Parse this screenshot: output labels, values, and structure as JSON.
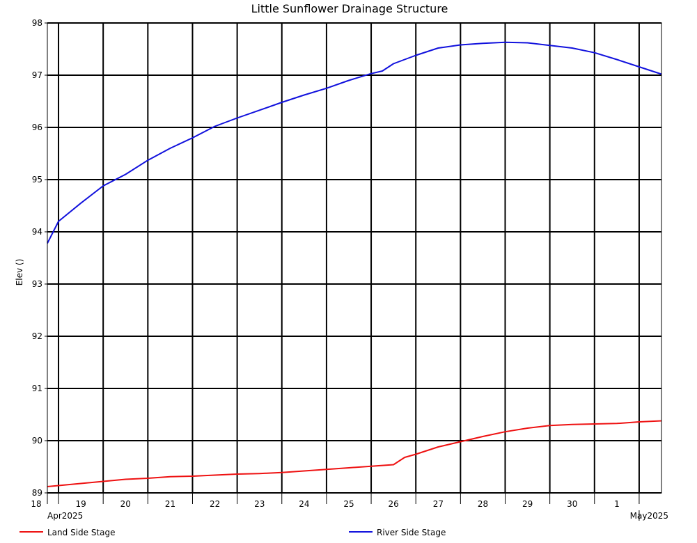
{
  "chart_data": {
    "type": "line",
    "title": "Little Sunflower Drainage Structure",
    "ylabel": "Elev ()",
    "ylim": [
      89,
      98
    ],
    "yticks": [
      89,
      90,
      91,
      92,
      93,
      94,
      95,
      96,
      97,
      98
    ],
    "grid": true,
    "x_domain": [
      "2025-04-17T18:00",
      "2025-05-01T12:00"
    ],
    "x_ticks": [
      {
        "label": "18",
        "date": "2025-04-18"
      },
      {
        "label": "19",
        "date": "2025-04-19"
      },
      {
        "label": "20",
        "date": "2025-04-20"
      },
      {
        "label": "21",
        "date": "2025-04-21"
      },
      {
        "label": "22",
        "date": "2025-04-22"
      },
      {
        "label": "23",
        "date": "2025-04-23"
      },
      {
        "label": "24",
        "date": "2025-04-24"
      },
      {
        "label": "25",
        "date": "2025-04-25"
      },
      {
        "label": "26",
        "date": "2025-04-26"
      },
      {
        "label": "27",
        "date": "2025-04-27"
      },
      {
        "label": "28",
        "date": "2025-04-28"
      },
      {
        "label": "29",
        "date": "2025-04-29"
      },
      {
        "label": "30",
        "date": "2025-04-30"
      },
      {
        "label": "1",
        "date": "2025-05-01"
      }
    ],
    "month_labels": [
      "Apr2025",
      "May2025"
    ],
    "legend_position": "bottom",
    "series": [
      {
        "name": "Land Side Stage",
        "color": "#ee1111",
        "x": [
          "2025-04-17T18:00",
          "2025-04-18T00:00",
          "2025-04-18T12:00",
          "2025-04-19T00:00",
          "2025-04-19T12:00",
          "2025-04-20T00:00",
          "2025-04-20T12:00",
          "2025-04-21T00:00",
          "2025-04-21T12:00",
          "2025-04-22T00:00",
          "2025-04-22T12:00",
          "2025-04-23T00:00",
          "2025-04-23T12:00",
          "2025-04-24T00:00",
          "2025-04-24T12:00",
          "2025-04-25T00:00",
          "2025-04-25T12:00",
          "2025-04-25T18:00",
          "2025-04-26T00:00",
          "2025-04-26T12:00",
          "2025-04-27T00:00",
          "2025-04-27T12:00",
          "2025-04-28T00:00",
          "2025-04-28T12:00",
          "2025-04-29T00:00",
          "2025-04-29T12:00",
          "2025-04-30T00:00",
          "2025-04-30T12:00",
          "2025-05-01T00:00",
          "2025-05-01T12:00"
        ],
        "values": [
          89.12,
          89.14,
          89.18,
          89.22,
          89.26,
          89.28,
          89.31,
          89.32,
          89.34,
          89.36,
          89.37,
          89.39,
          89.42,
          89.45,
          89.48,
          89.51,
          89.54,
          89.68,
          89.74,
          89.88,
          89.98,
          90.08,
          90.17,
          90.24,
          90.29,
          90.31,
          90.32,
          90.33,
          90.36,
          90.38
        ]
      },
      {
        "name": "River Side Stage",
        "color": "#1111dd",
        "x": [
          "2025-04-17T18:00",
          "2025-04-18T00:00",
          "2025-04-18T12:00",
          "2025-04-19T00:00",
          "2025-04-19T12:00",
          "2025-04-20T00:00",
          "2025-04-20T12:00",
          "2025-04-21T00:00",
          "2025-04-21T12:00",
          "2025-04-22T00:00",
          "2025-04-22T12:00",
          "2025-04-23T00:00",
          "2025-04-23T12:00",
          "2025-04-24T00:00",
          "2025-04-24T12:00",
          "2025-04-25T00:00",
          "2025-04-25T06:00",
          "2025-04-25T12:00",
          "2025-04-26T00:00",
          "2025-04-26T12:00",
          "2025-04-27T00:00",
          "2025-04-27T12:00",
          "2025-04-28T00:00",
          "2025-04-28T12:00",
          "2025-04-29T00:00",
          "2025-04-29T12:00",
          "2025-04-30T00:00",
          "2025-04-30T12:00",
          "2025-05-01T00:00",
          "2025-05-01T12:00"
        ],
        "values": [
          93.78,
          94.2,
          94.55,
          94.88,
          95.1,
          95.37,
          95.6,
          95.8,
          96.02,
          96.18,
          96.33,
          96.48,
          96.62,
          96.75,
          96.9,
          97.03,
          97.08,
          97.22,
          97.38,
          97.52,
          97.58,
          97.61,
          97.63,
          97.62,
          97.57,
          97.52,
          97.43,
          97.3,
          97.16,
          97.02
        ]
      }
    ]
  }
}
